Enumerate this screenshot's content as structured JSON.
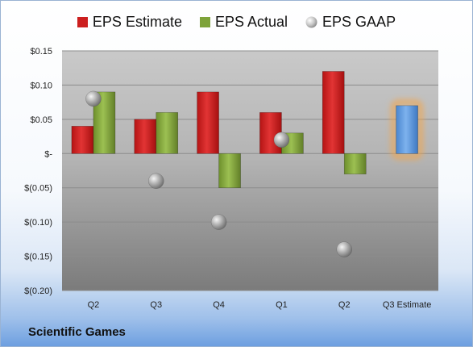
{
  "company": "Scientific Games",
  "legend": {
    "estimate": "EPS Estimate",
    "actual": "EPS Actual",
    "gaap": "EPS GAAP"
  },
  "colors": {
    "estimate": "#cc1f1f",
    "actual": "#7ea33a",
    "gaap": "#b8b8b8",
    "forecast": "#5b97dc",
    "highlight": "#f3a54a"
  },
  "chart_data": {
    "type": "bar",
    "categories": [
      "Q2",
      "Q3",
      "Q4",
      "Q1",
      "Q2",
      "Q3 Estimate"
    ],
    "series": [
      {
        "name": "EPS Estimate",
        "values": [
          0.04,
          0.05,
          0.09,
          0.06,
          0.12,
          0.07
        ]
      },
      {
        "name": "EPS Actual",
        "values": [
          0.09,
          0.06,
          -0.05,
          0.03,
          -0.03,
          null
        ]
      },
      {
        "name": "EPS GAAP",
        "values": [
          0.08,
          -0.04,
          -0.1,
          0.02,
          -0.14,
          null
        ]
      }
    ],
    "ylim": [
      -0.2,
      0.15
    ],
    "yticks": [
      0.15,
      0.1,
      0.05,
      0.0,
      -0.05,
      -0.1,
      -0.15,
      -0.2
    ],
    "ytick_labels": [
      "$0.15",
      "$0.10",
      "$0.05",
      "$-",
      "$(0.05)",
      "$(0.10)",
      "$(0.15)",
      "$(0.20)"
    ],
    "grid": true,
    "legend_position": "top"
  }
}
